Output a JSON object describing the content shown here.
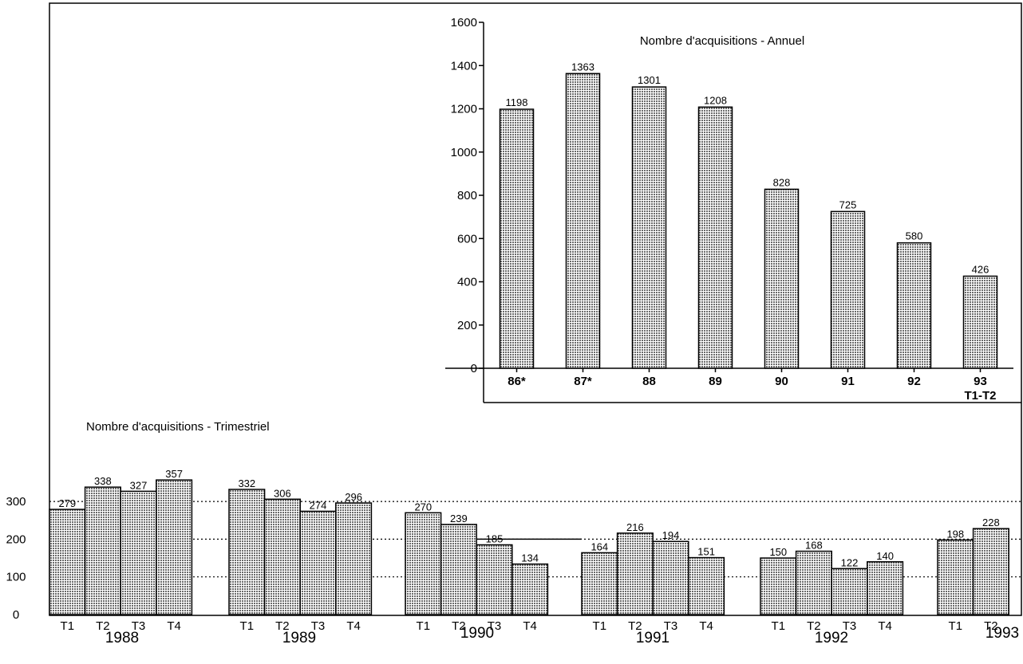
{
  "chart_data": [
    {
      "type": "bar",
      "title": "Nombre d'acquisitions - Annuel",
      "categories": [
        "86*",
        "87*",
        "88",
        "89",
        "90",
        "91",
        "92",
        "93\nT1-T2"
      ],
      "values": [
        1198,
        1363,
        1301,
        1208,
        828,
        725,
        580,
        426
      ],
      "ylim": [
        0,
        1600
      ],
      "yticks": [
        0,
        200,
        400,
        600,
        800,
        1000,
        1200,
        1400,
        1600
      ],
      "grid": false,
      "bar_fill": "#c8c8c8"
    },
    {
      "type": "bar",
      "title": "Nombre d'acquisitions - Trimestriel",
      "yticks": [
        0,
        100,
        200,
        300
      ],
      "ylim": [
        0,
        360
      ],
      "grid": "dotted horizontal at 100, 200, 300",
      "groups": [
        {
          "year": "1988",
          "quarters": [
            "T1",
            "T2",
            "T3",
            "T4"
          ],
          "values": [
            279,
            338,
            327,
            357
          ]
        },
        {
          "year": "1989",
          "quarters": [
            "T1",
            "T2",
            "T3",
            "T4"
          ],
          "values": [
            332,
            306,
            274,
            296
          ]
        },
        {
          "year": "1990",
          "quarters": [
            "T1",
            "T2",
            "T3",
            "T4"
          ],
          "values": [
            270,
            239,
            185,
            134
          ]
        },
        {
          "year": "1991",
          "quarters": [
            "T1",
            "T2",
            "T3",
            "T4"
          ],
          "values": [
            164,
            216,
            194,
            151
          ]
        },
        {
          "year": "1992",
          "quarters": [
            "T1",
            "T2",
            "T3",
            "T4"
          ],
          "values": [
            150,
            168,
            122,
            140
          ]
        },
        {
          "year": "1993",
          "quarters": [
            "T1",
            "T2"
          ],
          "values": [
            198,
            228
          ]
        }
      ],
      "bar_fill": "#c8c8c8"
    }
  ]
}
